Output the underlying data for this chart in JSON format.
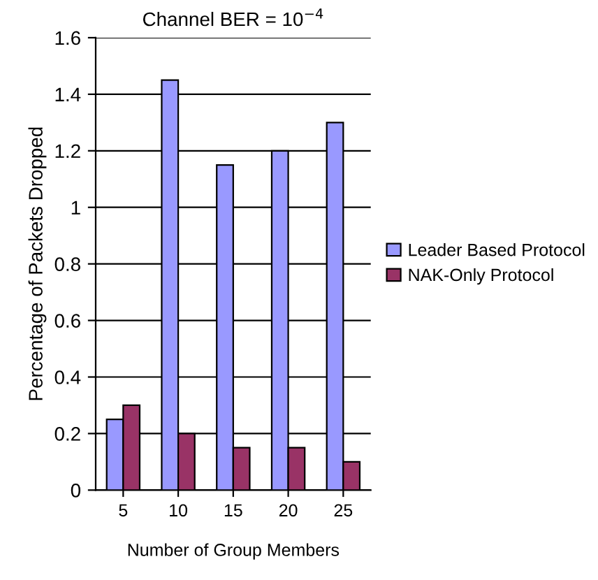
{
  "chart_data": {
    "type": "bar",
    "title": "Channel BER = 10$^{−4}$",
    "xlabel": "Number of Group Members",
    "ylabel": "Percentage of Packets Dropped",
    "categories": [
      "5",
      "10",
      "15",
      "20",
      "25"
    ],
    "series": [
      {
        "name": "Leader Based Protocol",
        "color": "#9999ff",
        "values": [
          0.25,
          1.45,
          1.15,
          1.2,
          1.3
        ]
      },
      {
        "name": "NAK-Only Protocol",
        "color": "#993366",
        "values": [
          0.3,
          0.2,
          0.15,
          0.15,
          0.1
        ]
      }
    ],
    "ylim": [
      0,
      1.6
    ],
    "yticks": [
      0,
      0.2,
      0.4,
      0.6,
      0.8,
      1,
      1.2,
      1.4,
      1.6
    ],
    "grid": "y",
    "legend": "right"
  }
}
